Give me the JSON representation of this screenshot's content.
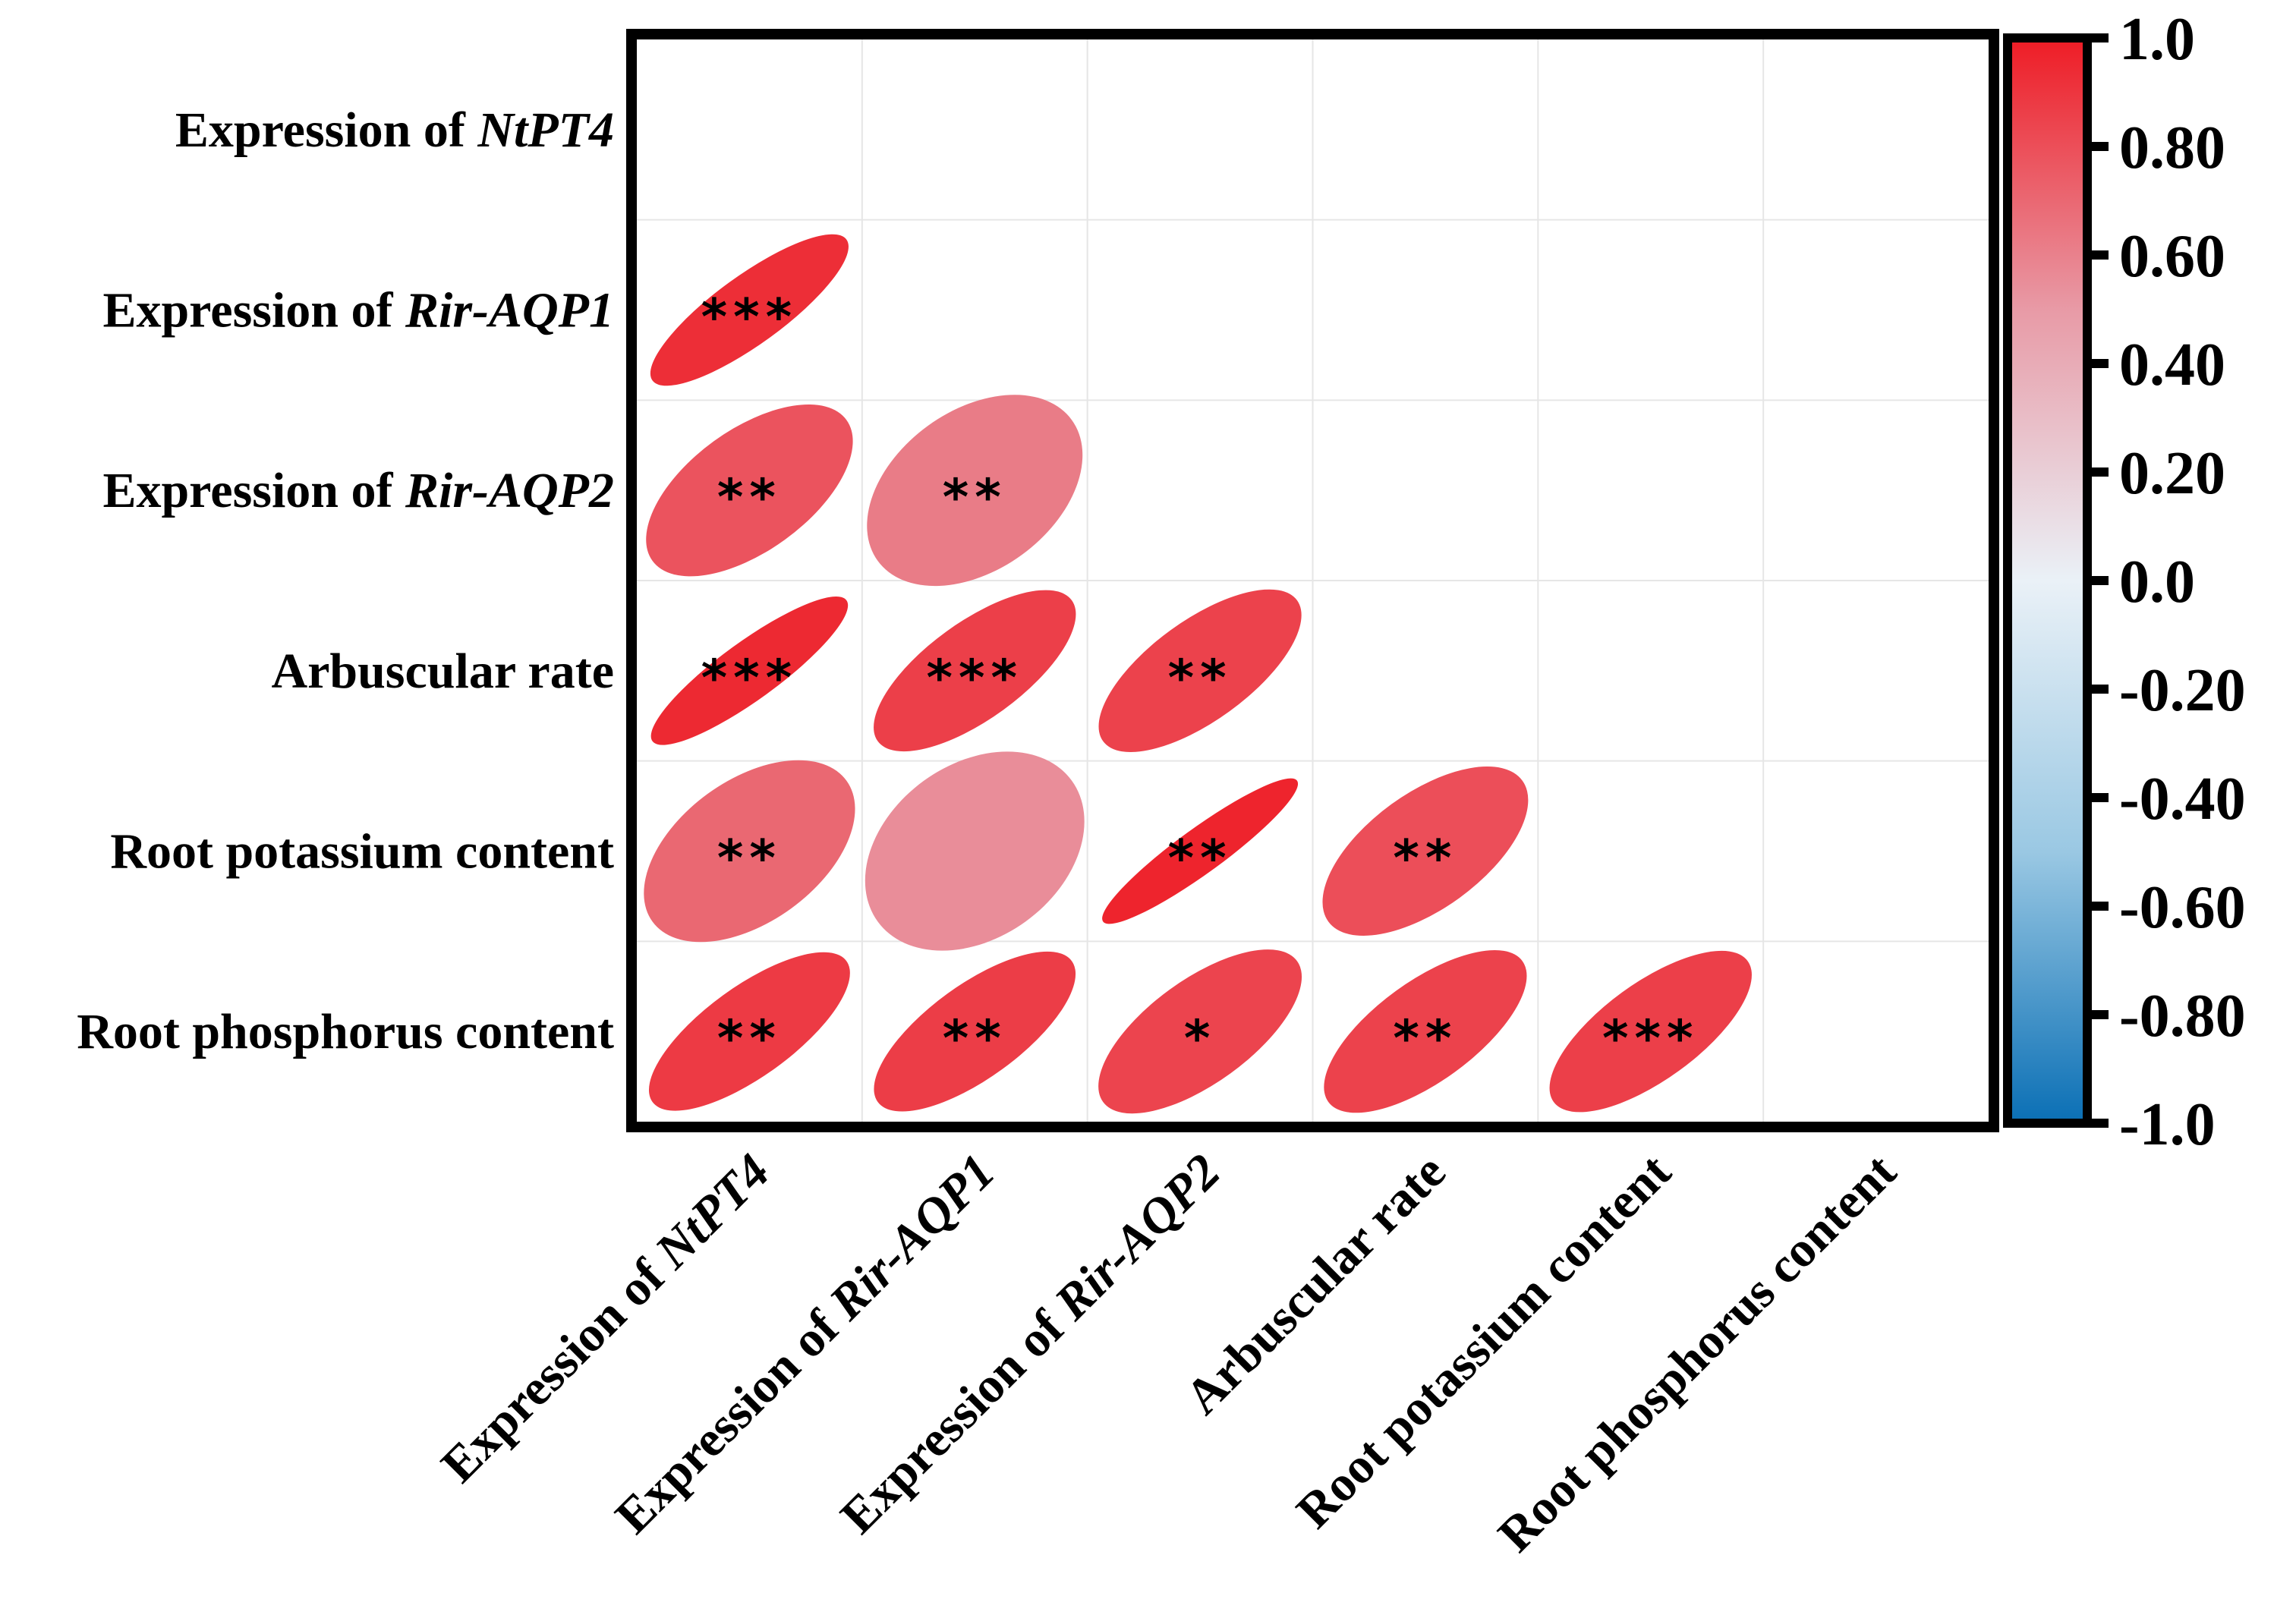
{
  "chart_data": {
    "type": "heatmap",
    "style": "ellipse correlation matrix (lower triangle)",
    "variables": [
      {
        "prefix": "Expression of ",
        "italic": "NtPT4"
      },
      {
        "prefix": "Expression of ",
        "italic": "Rir-AQP1"
      },
      {
        "prefix": "Expression of ",
        "italic": "Rir-AQP2"
      },
      {
        "prefix": "Arbuscular rate",
        "italic": ""
      },
      {
        "prefix": "Root potassium content",
        "italic": ""
      },
      {
        "prefix": "Root phosphorus content",
        "italic": ""
      }
    ],
    "correlations": [
      {
        "row": 1,
        "col": 0,
        "r": 0.93,
        "sig": "***"
      },
      {
        "row": 2,
        "col": 0,
        "r": 0.78,
        "sig": "**"
      },
      {
        "row": 2,
        "col": 1,
        "r": 0.62,
        "sig": "**"
      },
      {
        "row": 3,
        "col": 0,
        "r": 0.95,
        "sig": "***"
      },
      {
        "row": 3,
        "col": 1,
        "r": 0.86,
        "sig": "***"
      },
      {
        "row": 3,
        "col": 2,
        "r": 0.85,
        "sig": "**"
      },
      {
        "row": 4,
        "col": 0,
        "r": 0.7,
        "sig": "**"
      },
      {
        "row": 4,
        "col": 1,
        "r": 0.55,
        "sig": ""
      },
      {
        "row": 4,
        "col": 2,
        "r": 0.97,
        "sig": "**"
      },
      {
        "row": 4,
        "col": 3,
        "r": 0.8,
        "sig": "**"
      },
      {
        "row": 5,
        "col": 0,
        "r": 0.88,
        "sig": "**"
      },
      {
        "row": 5,
        "col": 1,
        "r": 0.87,
        "sig": "**"
      },
      {
        "row": 5,
        "col": 2,
        "r": 0.84,
        "sig": "*"
      },
      {
        "row": 5,
        "col": 3,
        "r": 0.85,
        "sig": "**"
      },
      {
        "row": 5,
        "col": 4,
        "r": 0.86,
        "sig": "***"
      }
    ],
    "colorbar": {
      "range": [
        -1.0,
        1.0
      ],
      "tick_labels": [
        "1.0",
        "0.80",
        "0.60",
        "0.40",
        "0.20",
        "0.0",
        "-0.20",
        "-0.40",
        "-0.60",
        "-0.80",
        "-1.0"
      ],
      "colors": {
        "neg": "#0a6fb5",
        "mid_neg": "#9ac8e3",
        "zero": "#eaf1f7",
        "mid_pos": "#e89aa6",
        "pos": "#ee1c25"
      }
    },
    "grid": true,
    "legend": "right"
  }
}
